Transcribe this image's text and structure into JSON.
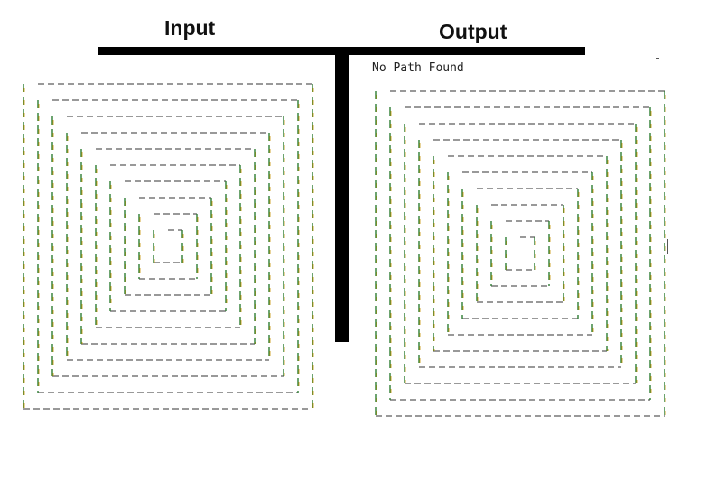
{
  "panels": {
    "input": {
      "title": "Input"
    },
    "output": {
      "title": "Output",
      "status": "No Path Found"
    }
  },
  "colors": {
    "background": "#ffffff",
    "divider": "#000000",
    "dash_horizontal": "#333333",
    "dash_vertical_a": "#2e7d32",
    "dash_vertical_b": "#c79200"
  }
}
